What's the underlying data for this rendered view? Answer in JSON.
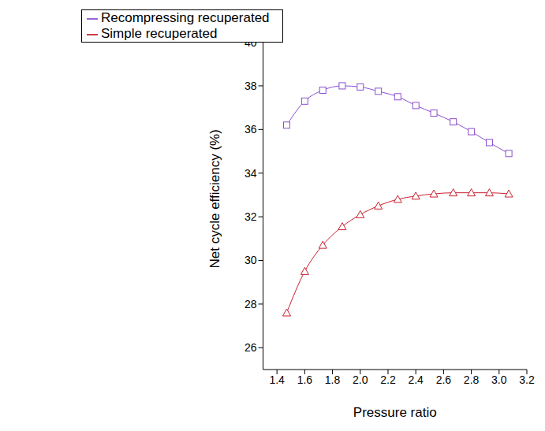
{
  "chart_data": {
    "type": "line",
    "x_label": "Pressure ratio",
    "y_label": "Net cycle efficiency (%)",
    "x": [
      1.47,
      1.6,
      1.73,
      1.87,
      2.0,
      2.13,
      2.27,
      2.4,
      2.53,
      2.67,
      2.8,
      2.93,
      3.07
    ],
    "series": [
      {
        "name": "Simple recuperated",
        "color": "#c8202e",
        "marker": "triangle",
        "values": [
          27.6,
          29.5,
          30.7,
          31.55,
          32.1,
          32.5,
          32.8,
          32.95,
          33.05,
          33.1,
          33.1,
          33.1,
          33.05
        ]
      },
      {
        "name": "Recompressing recuperated",
        "color": "#8a4fd0",
        "marker": "square",
        "values": [
          36.2,
          37.3,
          37.8,
          38.0,
          37.95,
          37.75,
          37.5,
          37.1,
          36.75,
          36.35,
          35.9,
          35.4,
          34.9
        ]
      }
    ],
    "xlim": [
      1.3,
      3.2
    ],
    "xticks": [
      1.4,
      1.6,
      1.8,
      {
        "value": 2,
        "label": "2.0"
      },
      2.2,
      2.4,
      2.6,
      2.8,
      {
        "value": 3,
        "label": "3.0"
      },
      3.2
    ],
    "ylim": [
      25,
      41.5
    ],
    "yticks": [
      26,
      28,
      30,
      32,
      34,
      36,
      38,
      40
    ],
    "grid": false,
    "legend": "upper left"
  }
}
